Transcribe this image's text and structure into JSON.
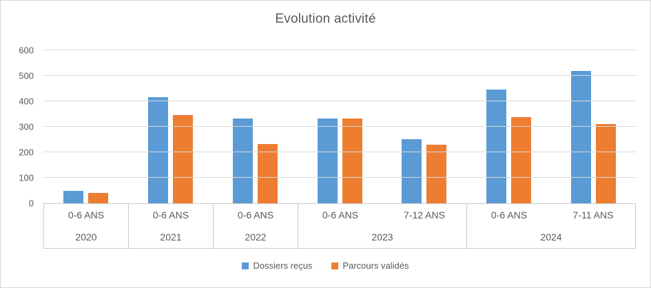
{
  "chart_data": {
    "type": "bar",
    "title": "Evolution activité",
    "xlabel": "",
    "ylabel": "",
    "ylim": [
      0,
      600
    ],
    "ytick_step": 100,
    "yticks": [
      0,
      100,
      200,
      300,
      400,
      500,
      600
    ],
    "grid": true,
    "grid_color": "#D9D9D9",
    "axis_line_color": "#C9C9C9",
    "text_color": "#595959",
    "legend_position": "bottom",
    "categories": [
      "0-6 ANS",
      "0-6 ANS",
      "0-6 ANS",
      "0-6 ANS",
      "7-12 ANS",
      "0-6 ANS",
      "7-11 ANS"
    ],
    "year_groups": [
      {
        "label": "2020",
        "span": 1
      },
      {
        "label": "2021",
        "span": 1
      },
      {
        "label": "2022",
        "span": 1
      },
      {
        "label": "2023",
        "span": 2
      },
      {
        "label": "2024",
        "span": 2
      }
    ],
    "series": [
      {
        "name": "Dossiers reçus",
        "color": "#5B9BD5",
        "values": [
          50,
          415,
          332,
          332,
          252,
          445,
          520
        ]
      },
      {
        "name": "Parcours validés",
        "color": "#ED7D31",
        "values": [
          40,
          345,
          233,
          332,
          230,
          338,
          310
        ]
      }
    ]
  }
}
